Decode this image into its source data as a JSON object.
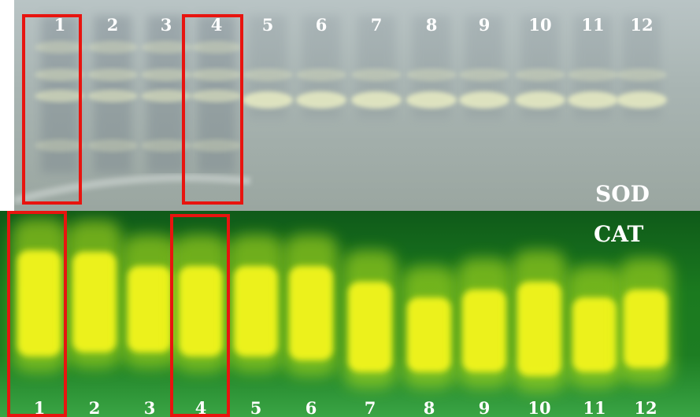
{
  "figure": {
    "sod": {
      "title": "SOD",
      "lane_labels": [
        "1",
        "2",
        "3",
        "4",
        "5",
        "6",
        "7",
        "8",
        "9",
        "10",
        "11",
        "12"
      ],
      "highlighted_lanes": [
        "1",
        "4"
      ],
      "colors": {
        "background": "#a9b5b3",
        "band": "#e9edc4",
        "smear": "#6f7c86"
      }
    },
    "cat": {
      "title": "CAT",
      "lane_labels": [
        "1",
        "2",
        "3",
        "4",
        "5",
        "6",
        "7",
        "8",
        "9",
        "10",
        "11",
        "12"
      ],
      "highlighted_lanes": [
        "1",
        "4"
      ],
      "colors": {
        "background": "#1b7a1f",
        "band": "#f3f51a",
        "band_edge": "#b9e61e"
      }
    },
    "highlight_color": "#e8140f"
  }
}
